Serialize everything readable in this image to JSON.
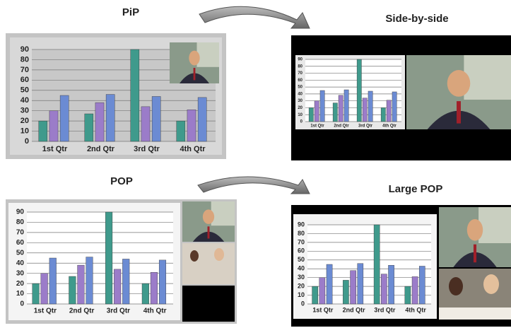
{
  "chart_data": [
    {
      "type": "bar",
      "title": "PiP",
      "categories": [
        "1st Qtr",
        "2nd Qtr",
        "3rd Qtr",
        "4th Qtr"
      ],
      "series": [
        {
          "color": "#3f9a8c",
          "values": [
            20,
            27,
            90,
            20
          ]
        },
        {
          "color": "#9b7cc9",
          "values": [
            30,
            38,
            34,
            31
          ]
        },
        {
          "color": "#6b8bd3",
          "values": [
            45,
            46,
            44,
            43
          ]
        }
      ],
      "ylim": [
        0,
        90
      ],
      "yticks": [
        0,
        10,
        20,
        30,
        40,
        50,
        60,
        70,
        80,
        90
      ],
      "grid": true
    },
    {
      "type": "bar",
      "title": "Side-by-side",
      "categories": [
        "1st Qtr",
        "2nd Qtr",
        "3rd Qtr",
        "4th Qtr"
      ],
      "series": [
        {
          "color": "#3f9a8c",
          "values": [
            20,
            27,
            90,
            20
          ]
        },
        {
          "color": "#9b7cc9",
          "values": [
            30,
            38,
            34,
            31
          ]
        },
        {
          "color": "#6b8bd3",
          "values": [
            45,
            46,
            44,
            43
          ]
        }
      ],
      "ylim": [
        0,
        90
      ],
      "yticks": [
        0,
        10,
        20,
        30,
        40,
        50,
        60,
        70,
        80,
        90
      ],
      "grid": true
    },
    {
      "type": "bar",
      "title": "POP",
      "categories": [
        "1st Qtr",
        "2nd Qtr",
        "3rd Qtr",
        "4th Qtr"
      ],
      "series": [
        {
          "color": "#3f9a8c",
          "values": [
            20,
            27,
            90,
            20
          ]
        },
        {
          "color": "#9b7cc9",
          "values": [
            30,
            38,
            34,
            31
          ]
        },
        {
          "color": "#6b8bd3",
          "values": [
            45,
            46,
            44,
            43
          ]
        }
      ],
      "ylim": [
        0,
        90
      ],
      "yticks": [
        0,
        10,
        20,
        30,
        40,
        50,
        60,
        70,
        80,
        90
      ],
      "grid": true
    },
    {
      "type": "bar",
      "title": "Large POP",
      "categories": [
        "1st Qtr",
        "2nd Qtr",
        "3rd Qtr",
        "4th Qtr"
      ],
      "series": [
        {
          "color": "#3f9a8c",
          "values": [
            20,
            27,
            90,
            20
          ]
        },
        {
          "color": "#9b7cc9",
          "values": [
            30,
            38,
            34,
            31
          ]
        },
        {
          "color": "#6b8bd3",
          "values": [
            45,
            46,
            44,
            43
          ]
        }
      ],
      "ylim": [
        0,
        90
      ],
      "yticks": [
        0,
        10,
        20,
        30,
        40,
        50,
        60,
        70,
        80,
        90
      ],
      "grid": true
    }
  ]
}
